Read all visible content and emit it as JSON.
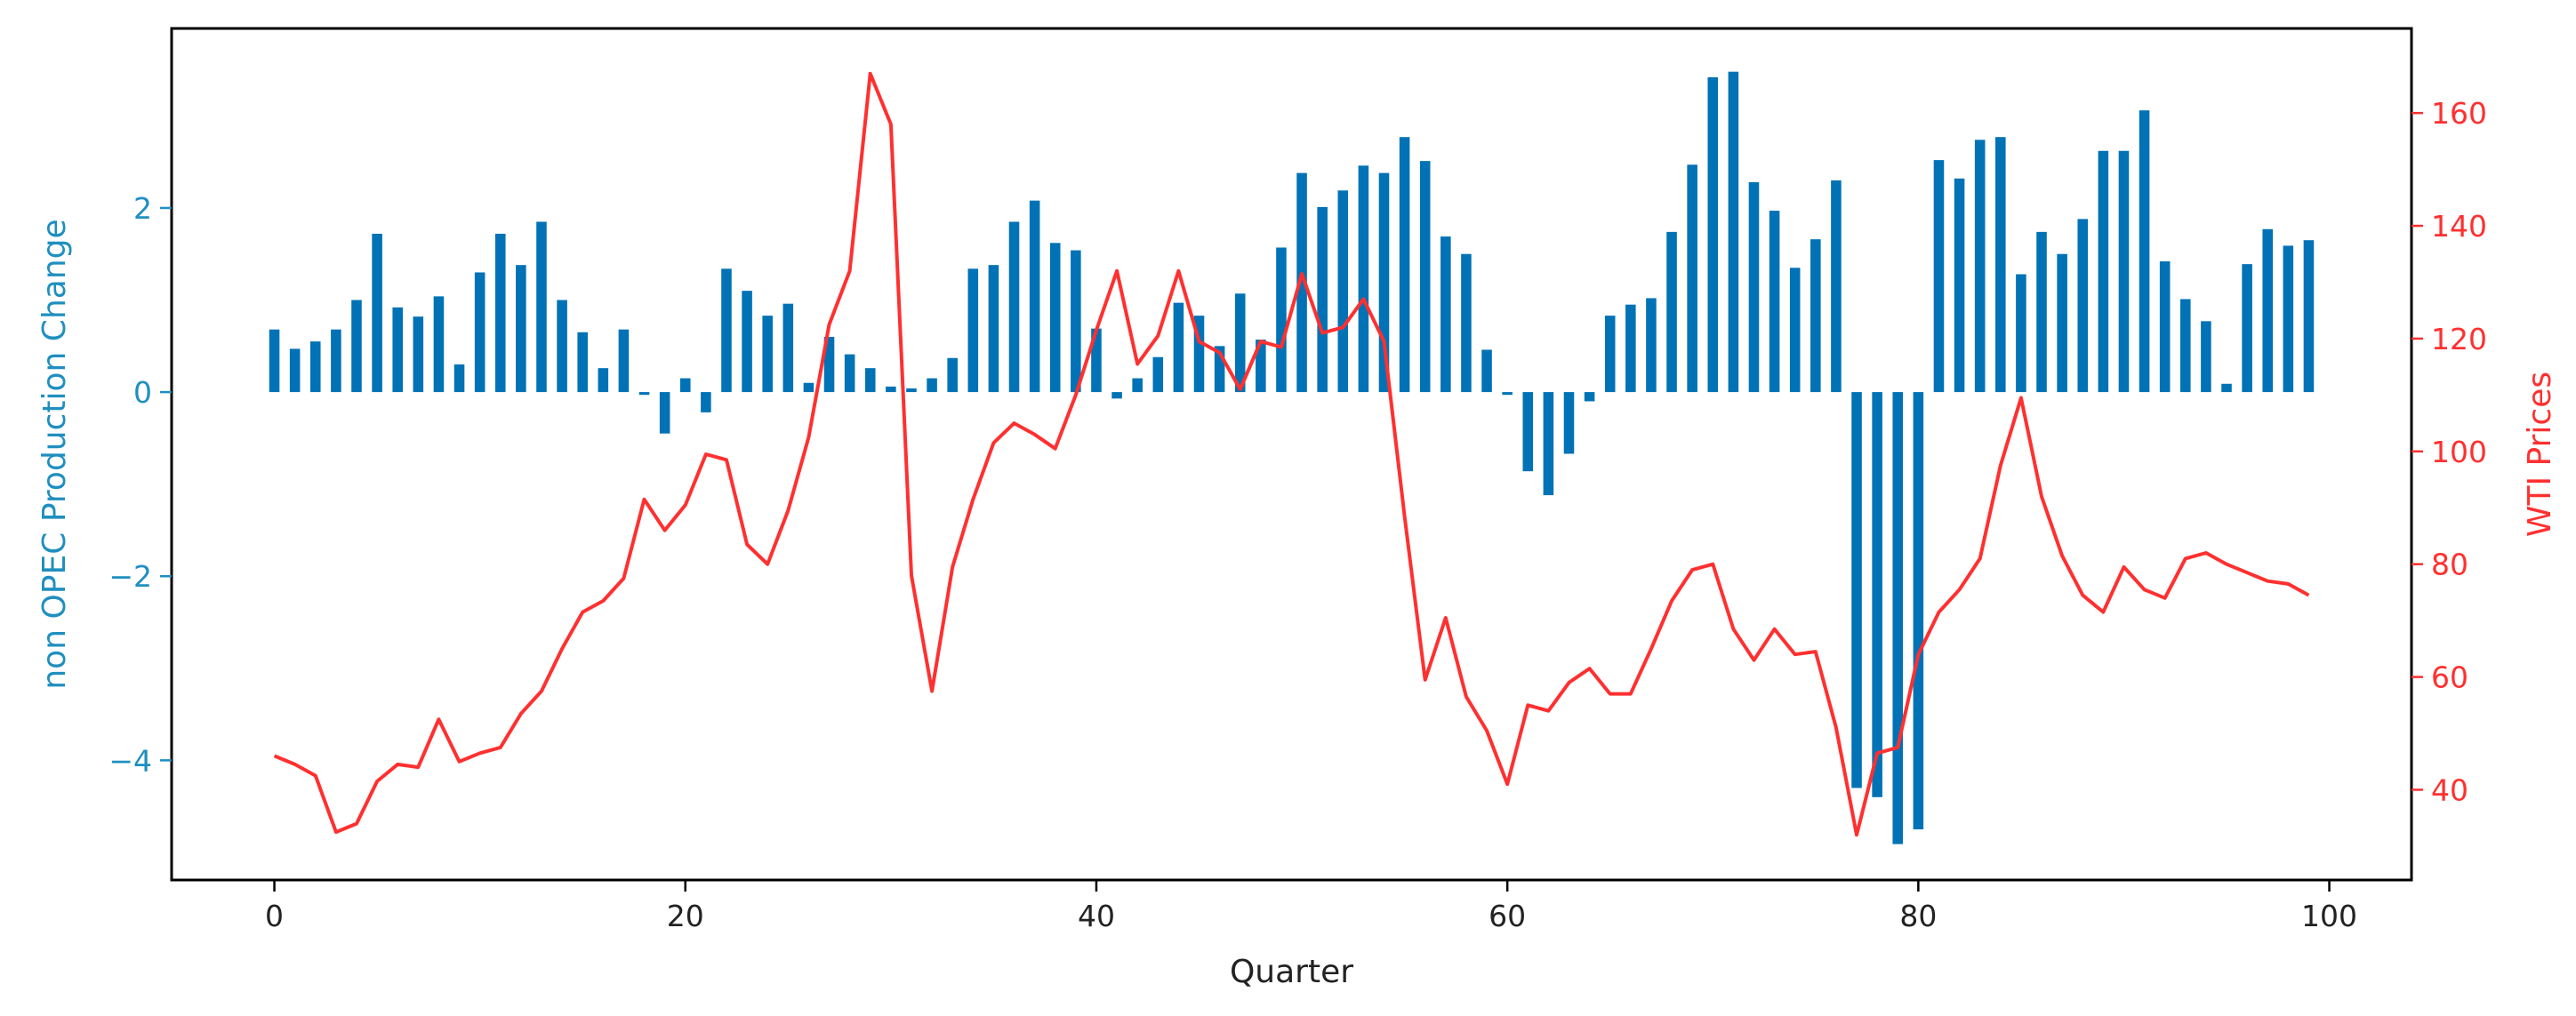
{
  "chart_data": {
    "type": "bar",
    "xlabel": "Quarter",
    "x_ticks": [
      0,
      20,
      40,
      60,
      80,
      100
    ],
    "xlim": [
      -5,
      104
    ],
    "axes": {
      "left": {
        "label": "non OPEC Production Change",
        "color": "#1f8fbf",
        "ticks": [
          -4,
          -2,
          0,
          2
        ],
        "tick_labels": [
          "−4",
          "−2",
          "0",
          "2"
        ],
        "ylim": [
          -5.3,
          3.95
        ]
      },
      "right": {
        "label": "WTI Prices",
        "color": "#ff3030",
        "ticks": [
          40,
          60,
          80,
          100,
          120,
          140,
          160
        ],
        "ylim": [
          24,
          175
        ]
      }
    },
    "series": [
      {
        "type": "bar",
        "axis": "left",
        "color": "#0072b5",
        "bar_width": 0.5,
        "x_start": 0,
        "values": [
          0.68,
          0.47,
          0.55,
          0.68,
          1.0,
          1.72,
          0.92,
          0.82,
          1.04,
          0.3,
          1.3,
          1.72,
          1.38,
          1.85,
          1.0,
          0.65,
          0.26,
          0.68,
          -0.03,
          -0.45,
          0.15,
          -0.22,
          1.34,
          1.1,
          0.83,
          0.96,
          0.1,
          0.6,
          0.41,
          0.26,
          0.06,
          0.04,
          0.15,
          0.37,
          1.34,
          1.38,
          1.85,
          2.08,
          1.62,
          1.54,
          0.69,
          -0.07,
          0.15,
          0.38,
          0.97,
          0.83,
          0.5,
          1.07,
          0.57,
          1.57,
          2.38,
          2.01,
          2.19,
          2.46,
          2.38,
          2.77,
          2.51,
          1.69,
          1.5,
          0.46,
          -0.03,
          -0.86,
          -1.12,
          -0.67,
          -0.1,
          0.83,
          0.95,
          1.02,
          1.74,
          2.47,
          3.42,
          3.48,
          2.28,
          1.97,
          1.35,
          1.66,
          2.3,
          -4.3,
          -4.4,
          -4.91,
          -4.75,
          2.52,
          2.32,
          2.74,
          2.77,
          1.28,
          1.74,
          1.5,
          1.88,
          2.62,
          2.62,
          3.06,
          1.42,
          1.01,
          0.77,
          0.09,
          1.39,
          1.77,
          1.59,
          1.65
        ]
      },
      {
        "type": "line",
        "axis": "right",
        "color": "#ff3030",
        "x_start": 0,
        "values": [
          46,
          44.5,
          42.5,
          32.5,
          34,
          41.5,
          44.5,
          44,
          52.5,
          45,
          46.5,
          47.5,
          53.5,
          57.5,
          65,
          71.5,
          73.5,
          77.5,
          91.5,
          86,
          90.5,
          99.5,
          98.5,
          83.5,
          80,
          89.5,
          102.5,
          122.5,
          132,
          167,
          158,
          78,
          57.5,
          79.5,
          91.5,
          101.5,
          105,
          103,
          100.5,
          110,
          121.5,
          132,
          115.5,
          120.5,
          132,
          119.5,
          117.5,
          111,
          119.5,
          118.5,
          131.5,
          121,
          122,
          127,
          119.5,
          88.5,
          59.5,
          70.5,
          56.5,
          50.5,
          41,
          55,
          54,
          59,
          61.5,
          57,
          57,
          65,
          73.5,
          79,
          80,
          68.5,
          63,
          68.5,
          64,
          64.5,
          51,
          32,
          46.5,
          47.5,
          64,
          71.5,
          75.5,
          81,
          97.5,
          109.5,
          92,
          81.5,
          74.5,
          71.5,
          79.5,
          75.5,
          74,
          81,
          82,
          80,
          78.5,
          77,
          76.5,
          74.5
        ]
      }
    ]
  }
}
